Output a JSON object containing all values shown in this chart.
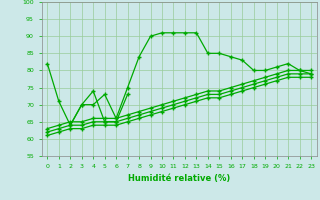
{
  "line1": {
    "x": [
      0,
      1,
      2,
      3,
      4,
      5,
      6,
      7,
      8,
      9,
      10,
      11,
      12,
      13,
      14,
      15,
      16,
      17,
      18,
      19,
      20,
      21,
      22,
      23
    ],
    "y": [
      82,
      71,
      64,
      70,
      70,
      73,
      66,
      75,
      84,
      90,
      91,
      91,
      91,
      91,
      85,
      85,
      84,
      83,
      80,
      80,
      81,
      82,
      80,
      79
    ]
  },
  "line2": {
    "x": [
      2,
      3,
      4,
      5,
      6,
      7
    ],
    "y": [
      64,
      70,
      74,
      65,
      65,
      73
    ]
  },
  "line3": {
    "x": [
      0,
      1,
      2,
      3,
      4,
      5,
      6,
      7,
      8,
      9,
      10,
      11,
      12,
      13,
      14,
      15,
      16,
      17,
      18,
      19,
      20,
      21,
      22,
      23
    ],
    "y": [
      63,
      64,
      65,
      65,
      66,
      66,
      66,
      67,
      68,
      69,
      70,
      71,
      72,
      73,
      74,
      74,
      75,
      76,
      77,
      78,
      79,
      80,
      80,
      80
    ]
  },
  "line4": {
    "x": [
      0,
      1,
      2,
      3,
      4,
      5,
      6,
      7,
      8,
      9,
      10,
      11,
      12,
      13,
      14,
      15,
      16,
      17,
      18,
      19,
      20,
      21,
      22,
      23
    ],
    "y": [
      62,
      63,
      64,
      64,
      65,
      65,
      65,
      66,
      67,
      68,
      69,
      70,
      71,
      72,
      73,
      73,
      74,
      75,
      76,
      77,
      78,
      79,
      79,
      79
    ]
  },
  "line5": {
    "x": [
      0,
      1,
      2,
      3,
      4,
      5,
      6,
      7,
      8,
      9,
      10,
      11,
      12,
      13,
      14,
      15,
      16,
      17,
      18,
      19,
      20,
      21,
      22,
      23
    ],
    "y": [
      61,
      62,
      63,
      63,
      64,
      64,
      64,
      65,
      66,
      67,
      68,
      69,
      70,
      71,
      72,
      72,
      73,
      74,
      75,
      76,
      77,
      78,
      78,
      78
    ]
  },
  "color": "#00aa00",
  "bg_color": "#cce8e8",
  "grid_color": "#99cc99",
  "xlabel": "Humidité relative (%)",
  "ylim": [
    55,
    100
  ],
  "xlim": [
    -0.5,
    23.5
  ],
  "yticks": [
    55,
    60,
    65,
    70,
    75,
    80,
    85,
    90,
    95,
    100
  ],
  "xticks": [
    0,
    1,
    2,
    3,
    4,
    5,
    6,
    7,
    8,
    9,
    10,
    11,
    12,
    13,
    14,
    15,
    16,
    17,
    18,
    19,
    20,
    21,
    22,
    23
  ],
  "marker": "+"
}
